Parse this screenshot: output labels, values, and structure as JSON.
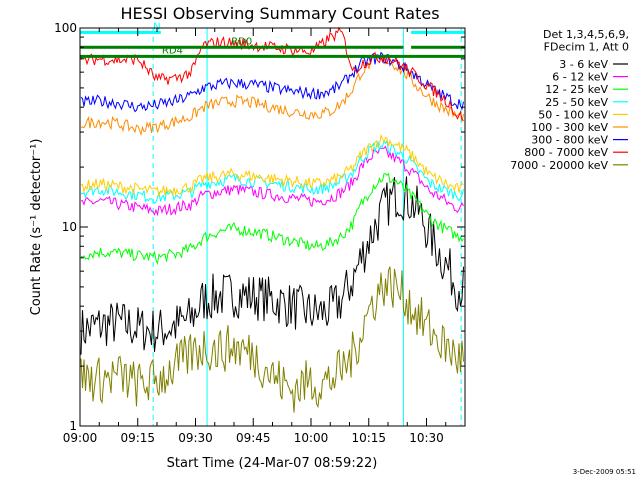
{
  "chart_data": {
    "type": "line",
    "title": "HESSI Observing Summary Count Rates",
    "xlabel": "Start Time (24-Mar-07 08:59:22)",
    "ylabel": "Count Rate (s⁻¹ detector⁻¹)",
    "yscale": "log",
    "ylim": [
      1,
      100
    ],
    "xlim_minutes_after_0900": [
      0,
      100
    ],
    "x_ticks": [
      "09:00",
      "09:15",
      "09:30",
      "09:45",
      "10:00",
      "10:15",
      "10:30"
    ],
    "y_ticks": [
      "1",
      "10",
      "100"
    ],
    "legend_header": [
      "Det 1,3,4,5,6,9,",
      "FDecim 1, Att 0"
    ],
    "legend_position": "right",
    "footer_date": "3-Dec-2009 05:51",
    "x_minutes": [
      0,
      5,
      10,
      15,
      20,
      25,
      29,
      32,
      36,
      40,
      45,
      50,
      55,
      60,
      62,
      65,
      68,
      71,
      73,
      76,
      79,
      82,
      85,
      88,
      91,
      94,
      96,
      98
    ],
    "series": [
      {
        "name": "3 - 6 keV",
        "color": "#000000",
        "values": [
          3.0,
          3.2,
          3.3,
          3.1,
          3.0,
          3.2,
          3.5,
          4.3,
          4.5,
          4.6,
          4.5,
          4.3,
          4.0,
          3.7,
          3.7,
          3.8,
          4.3,
          5.5,
          7.0,
          9.5,
          12.5,
          14.5,
          14.0,
          12.0,
          9.0,
          7.0,
          6.0,
          5.0
        ]
      },
      {
        "name": "6 - 12 keV",
        "color": "#ff00ff",
        "values": [
          13.0,
          13.5,
          13.0,
          12.5,
          12.0,
          12.5,
          13.0,
          14.5,
          15.0,
          15.5,
          15.0,
          14.5,
          14.0,
          13.5,
          13.5,
          14.0,
          15.0,
          17.0,
          20.0,
          23.0,
          24.0,
          22.0,
          20.0,
          17.5,
          15.0,
          14.0,
          13.0,
          12.5
        ]
      },
      {
        "name": "12 - 25 keV",
        "color": "#00ff00",
        "values": [
          7.2,
          7.5,
          7.4,
          7.2,
          7.0,
          7.3,
          7.8,
          8.8,
          9.5,
          9.8,
          9.5,
          9.0,
          8.5,
          8.0,
          8.0,
          8.3,
          9.0,
          10.5,
          13.0,
          16.0,
          18.0,
          17.0,
          15.0,
          13.0,
          11.0,
          10.0,
          9.5,
          9.0
        ]
      },
      {
        "name": "25 - 50 keV",
        "color": "#00ffff",
        "values": [
          15.0,
          15.5,
          15.0,
          14.5,
          14.0,
          14.5,
          15.0,
          16.5,
          17.0,
          17.5,
          17.0,
          16.5,
          16.0,
          15.5,
          15.5,
          16.0,
          17.0,
          19.0,
          22.0,
          25.0,
          26.0,
          24.0,
          22.0,
          19.0,
          16.5,
          15.5,
          15.0,
          14.5
        ]
      },
      {
        "name": "50 - 100 keV",
        "color": "#ffcc00",
        "values": [
          16.0,
          16.5,
          16.0,
          15.5,
          15.0,
          15.5,
          16.0,
          17.5,
          18.0,
          18.5,
          18.0,
          17.5,
          17.0,
          16.5,
          16.5,
          17.0,
          18.0,
          20.0,
          23.0,
          26.0,
          28.0,
          26.0,
          24.0,
          21.0,
          18.0,
          17.0,
          16.0,
          15.5
        ]
      },
      {
        "name": "100 - 300 keV",
        "color": "#ff8c00",
        "values": [
          33.0,
          34.0,
          33.0,
          31.0,
          32.0,
          34.0,
          36.0,
          40.0,
          42.0,
          43.0,
          42.0,
          40.0,
          38.0,
          37.0,
          37.0,
          38.0,
          42.0,
          50.0,
          60.0,
          68.0,
          70.0,
          65.0,
          58.0,
          50.0,
          44.0,
          40.0,
          38.0,
          36.0
        ]
      },
      {
        "name": "300 - 800 keV",
        "color": "#0000ff",
        "values": [
          42.0,
          43.0,
          42.0,
          40.0,
          41.0,
          43.0,
          46.0,
          50.0,
          52.0,
          53.0,
          52.0,
          50.0,
          48.0,
          47.0,
          47.0,
          48.0,
          52.0,
          60.0,
          66.0,
          70.0,
          71.0,
          67.0,
          62.0,
          56.0,
          50.0,
          46.0,
          44.0,
          42.0
        ]
      },
      {
        "name": "800 - 7000 keV",
        "color": "#ff0000",
        "values": [
          68.0,
          70.0,
          69.0,
          70.0,
          55.0,
          56.0,
          60.0,
          82.0,
          85.0,
          84.0,
          82.0,
          80.0,
          78.0,
          76.0,
          80.0,
          90.0,
          95.0,
          60.0,
          66.0,
          70.0,
          72.0,
          68.0,
          62.0,
          56.0,
          50.0,
          45.0,
          42.0,
          36.0
        ]
      },
      {
        "name": "7000 - 20000 keV",
        "color": "#808000",
        "values": [
          1.8,
          1.7,
          1.8,
          1.6,
          1.7,
          2.0,
          2.3,
          2.5,
          2.4,
          2.5,
          2.3,
          1.8,
          1.5,
          1.7,
          1.6,
          1.7,
          1.9,
          2.3,
          3.0,
          4.2,
          5.2,
          5.0,
          4.3,
          3.5,
          3.0,
          2.6,
          2.4,
          2.2
        ]
      }
    ],
    "annotation_bars": [
      {
        "label": "N",
        "color": "#00ffff",
        "start": 0,
        "end": 21,
        "value": 95
      },
      {
        "label": "",
        "color": "#00ffff",
        "start": 86,
        "end": 100,
        "value": 95
      },
      {
        "label": "RD0",
        "color": "#008000",
        "start": 0,
        "end": 84,
        "value": 80
      },
      {
        "label": "",
        "color": "#008000",
        "start": 86,
        "end": 100,
        "value": 80
      },
      {
        "label": "RD4",
        "color": "#008000",
        "start": 0,
        "end": 100,
        "value": 72
      }
    ],
    "vertical_markers": [
      {
        "x": 0,
        "color": "#00ffff",
        "style": "solid"
      },
      {
        "x": 19,
        "color": "#00ffff",
        "style": "dashed"
      },
      {
        "x": 33,
        "color": "#00ffff",
        "style": "solid"
      },
      {
        "x": 84,
        "color": "#00ffff",
        "style": "solid"
      },
      {
        "x": 99,
        "color": "#00ffff",
        "style": "dashed"
      }
    ]
  }
}
